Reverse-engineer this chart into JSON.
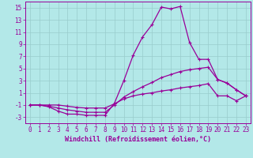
{
  "xlabel": "Windchill (Refroidissement éolien,°C)",
  "xlim": [
    -0.5,
    23.5
  ],
  "ylim": [
    -4,
    16
  ],
  "yticks": [
    -3,
    -1,
    1,
    3,
    5,
    7,
    9,
    11,
    13,
    15
  ],
  "xticks": [
    0,
    1,
    2,
    3,
    4,
    5,
    6,
    7,
    8,
    9,
    10,
    11,
    12,
    13,
    14,
    15,
    16,
    17,
    18,
    19,
    20,
    21,
    22,
    23
  ],
  "bg_color": "#b3e8e8",
  "line_color": "#990099",
  "grid_color": "#99cccc",
  "line1_x": [
    0,
    1,
    2,
    3,
    4,
    5,
    6,
    7,
    8,
    9,
    10,
    11,
    12,
    13,
    14,
    15,
    16,
    17,
    18,
    19,
    20,
    21,
    22,
    23
  ],
  "line1_y": [
    -1,
    -1,
    -1.3,
    -2,
    -2.5,
    -2.5,
    -2.7,
    -2.7,
    -2.7,
    -0.7,
    3.0,
    7.2,
    10.2,
    12.2,
    15.1,
    14.8,
    15.2,
    9.3,
    6.5,
    6.5,
    3.2,
    2.6,
    1.5,
    0.5
  ],
  "line2_x": [
    0,
    1,
    2,
    3,
    4,
    5,
    6,
    7,
    8,
    9,
    10,
    11,
    12,
    13,
    14,
    15,
    16,
    17,
    18,
    19,
    20,
    21,
    22,
    23
  ],
  "line2_y": [
    -1,
    -1,
    -1.2,
    -1.5,
    -1.8,
    -2.0,
    -2.2,
    -2.2,
    -2.2,
    -1.0,
    0.3,
    1.2,
    2.0,
    2.7,
    3.5,
    4.0,
    4.5,
    4.8,
    5.0,
    5.2,
    3.2,
    2.6,
    1.5,
    0.5
  ],
  "line3_x": [
    0,
    1,
    2,
    3,
    4,
    5,
    6,
    7,
    8,
    9,
    10,
    11,
    12,
    13,
    14,
    15,
    16,
    17,
    18,
    19,
    20,
    21,
    22,
    23
  ],
  "line3_y": [
    -1,
    -1,
    -1.0,
    -1.0,
    -1.2,
    -1.4,
    -1.5,
    -1.5,
    -1.5,
    -0.8,
    0.0,
    0.5,
    0.8,
    1.0,
    1.3,
    1.5,
    1.8,
    2.0,
    2.2,
    2.5,
    0.5,
    0.5,
    -0.3,
    0.5
  ]
}
